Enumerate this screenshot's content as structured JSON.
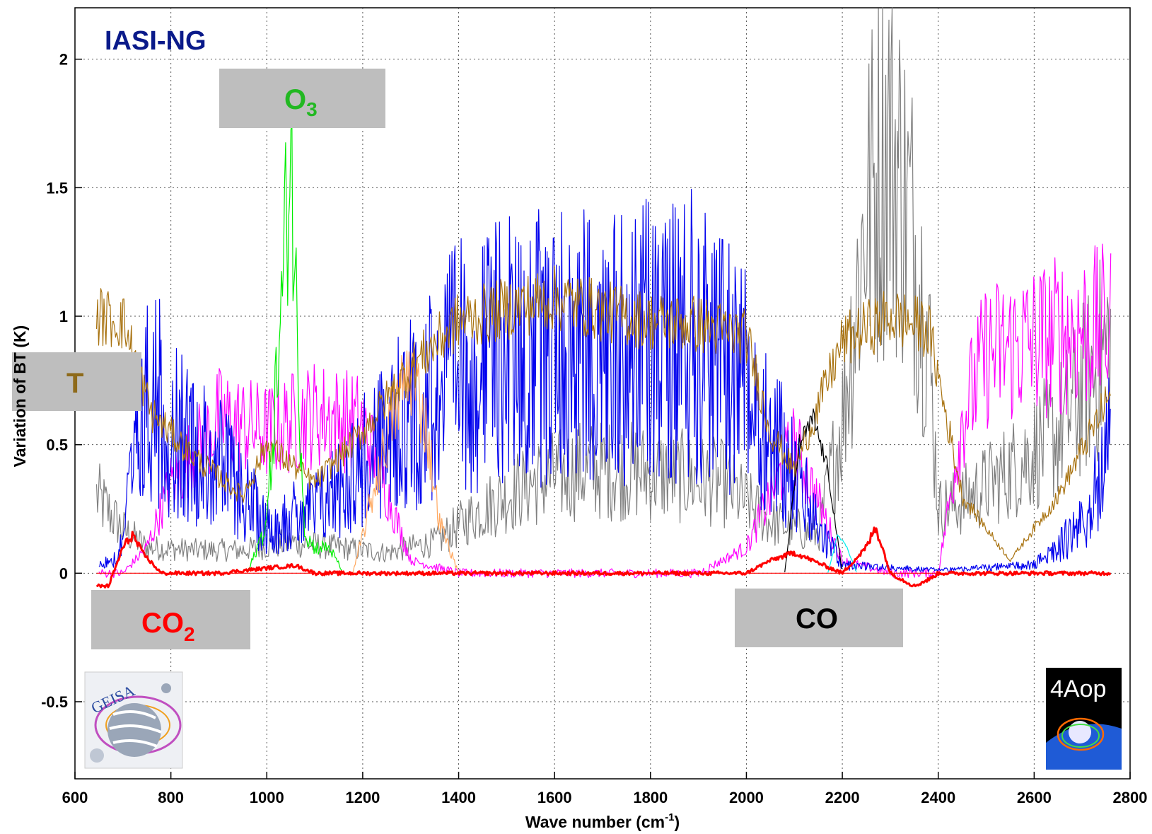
{
  "chart_data": {
    "type": "line",
    "title": "IASI-NG",
    "xlabel": "Wave number (cm",
    "xlabel_sup": "-1",
    "xlabel_end": ")",
    "ylabel": "Variation of BT (K)",
    "xlim": [
      600,
      2800
    ],
    "ylim": [
      -0.8,
      2.2
    ],
    "x_ticks": [
      "600",
      "800",
      "1000",
      "1200",
      "1400",
      "1600",
      "1800",
      "2000",
      "2200",
      "2400",
      "2600",
      "2800"
    ],
    "y_ticks": [
      "-0.5",
      "0",
      "0.5",
      "1",
      "1.5",
      "2"
    ],
    "grid": true,
    "series": [
      {
        "name": "T",
        "color": "#a8720f",
        "x": [
          645,
          700,
          760,
          850,
          950,
          1000,
          1100,
          1200,
          1300,
          1400,
          1500,
          1600,
          1700,
          1800,
          1900,
          2000,
          2050,
          2100,
          2200,
          2300,
          2380,
          2450,
          2550,
          2650,
          2760
        ],
        "y": [
          1.0,
          0.98,
          0.62,
          0.45,
          0.3,
          0.5,
          0.35,
          0.55,
          0.8,
          0.98,
          1.03,
          1.07,
          1.02,
          0.98,
          0.97,
          0.92,
          0.55,
          0.4,
          0.9,
          1.0,
          0.95,
          0.3,
          0.05,
          0.3,
          0.7
        ]
      },
      {
        "color": "#0000ee",
        "x": [
          650,
          690,
          720,
          760,
          800,
          900,
          1000,
          1100,
          1200,
          1300,
          1400,
          1500,
          1600,
          1700,
          1800,
          1900,
          2000,
          2100,
          2150,
          2200,
          2400,
          2600,
          2700,
          2760
        ],
        "y": [
          0.05,
          0.1,
          0.6,
          1.2,
          0.9,
          0.7,
          0.3,
          0.4,
          0.7,
          1.0,
          1.3,
          1.4,
          1.45,
          1.4,
          1.5,
          1.5,
          1.2,
          0.6,
          0.3,
          0.05,
          0.02,
          0.05,
          0.3,
          0.8
        ]
      },
      {
        "color": "#ff00ff",
        "x": [
          650,
          700,
          750,
          800,
          900,
          1000,
          1100,
          1200,
          1300,
          1400,
          1900,
          2000,
          2100,
          2200,
          2300,
          2400,
          2450,
          2500,
          2600,
          2700,
          2760
        ],
        "y": [
          0.0,
          0.0,
          0.1,
          0.35,
          0.6,
          0.55,
          0.62,
          0.58,
          0.05,
          0.0,
          0.0,
          0.1,
          0.5,
          0.05,
          0.0,
          0.0,
          0.6,
          0.85,
          0.9,
          0.95,
          0.95
        ]
      },
      {
        "color": "#808080",
        "x": [
          645,
          700,
          750,
          850,
          950,
          1050,
          1150,
          1250,
          1350,
          1450,
          1550,
          1650,
          1750,
          1850,
          1950,
          2050,
          2150,
          2200,
          2250,
          2300,
          2350,
          2380,
          2400,
          2450,
          2550,
          2650,
          2760
        ],
        "y": [
          0.3,
          0.17,
          0.1,
          0.09,
          0.09,
          0.12,
          0.1,
          0.08,
          0.12,
          0.25,
          0.35,
          0.4,
          0.4,
          0.38,
          0.35,
          0.2,
          0.15,
          0.6,
          1.4,
          1.7,
          1.3,
          0.9,
          0.25,
          0.28,
          0.4,
          0.55,
          0.9
        ]
      },
      {
        "color": "#00ee00",
        "x": [
          960,
          1000,
          1030,
          1050,
          1065,
          1080,
          1100,
          1130,
          1160
        ],
        "y": [
          0.0,
          0.2,
          1.0,
          1.7,
          0.8,
          0.15,
          0.1,
          0.1,
          0.0
        ]
      },
      {
        "color": "#ffa860",
        "x": [
          1180,
          1220,
          1260,
          1300,
          1330,
          1360,
          1400
        ],
        "y": [
          0.0,
          0.3,
          0.6,
          0.8,
          0.6,
          0.2,
          0.0
        ]
      },
      {
        "color": "#ff0000",
        "x": [
          645,
          670,
          700,
          720,
          740,
          780,
          900,
          1000,
          1060,
          1100,
          2000,
          2050,
          2100,
          2200,
          2250,
          2270,
          2300,
          2350,
          2385,
          2400,
          2760
        ],
        "y": [
          -0.05,
          -0.05,
          0.1,
          0.15,
          0.08,
          0.0,
          0.0,
          0.02,
          0.03,
          0.0,
          0.0,
          0.05,
          0.08,
          0.0,
          0.1,
          0.18,
          0.0,
          -0.05,
          -0.02,
          0.0,
          0.0
        ]
      },
      {
        "color": "#000000",
        "x": [
          2080,
          2110,
          2140,
          2170,
          2200
        ],
        "y": [
          0.0,
          0.5,
          0.6,
          0.4,
          0.0
        ]
      },
      {
        "color": "#00eeee",
        "x": [
          2170,
          2190,
          2210,
          2230
        ],
        "y": [
          0.0,
          0.15,
          0.1,
          0.0
        ]
      }
    ],
    "annotations": [
      {
        "label": "O",
        "sub": "3",
        "color": "#22b822"
      },
      {
        "label": "T",
        "sub": "",
        "color": "#8e6a1a"
      },
      {
        "label": "CO",
        "sub": "2",
        "color": "#ff0000"
      },
      {
        "label": "CO",
        "sub": "",
        "color": "#000000"
      }
    ]
  },
  "logos": {
    "left_text": "GEISA",
    "right_text": "4Aop"
  }
}
